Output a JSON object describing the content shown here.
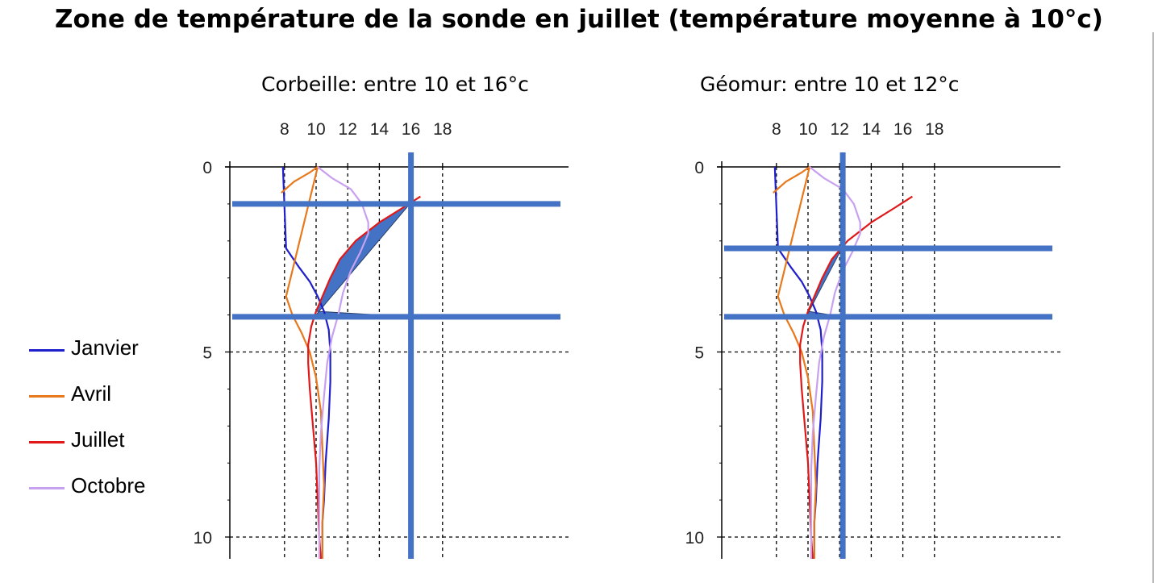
{
  "title": "Zone de température de la sonde en juillet (température moyenne à 10°c)",
  "legend": [
    {
      "label": "Janvier",
      "color": "#1f1fcc"
    },
    {
      "label": "Avril",
      "color": "#e8781c"
    },
    {
      "label": "Juillet",
      "color": "#e01818"
    },
    {
      "label": "Octobre",
      "color": "#c8a0f0"
    }
  ],
  "colors": {
    "zone": "#4472c4",
    "grid": "#000000"
  },
  "chart_data": [
    {
      "type": "line",
      "title": "Corbeille: entre 10 et 16°c",
      "x_ticks": [
        8,
        10,
        12,
        14,
        16,
        18
      ],
      "y_ticks": [
        0,
        5,
        10
      ],
      "xlim": [
        7.8,
        16.6
      ],
      "ylim": [
        0,
        10.6
      ],
      "y_inverted": true,
      "grid": "dashed",
      "highlight": {
        "temp_line": 16.0,
        "depth_top": 1.0,
        "depth_bottom": 4.05
      },
      "series": [
        {
          "name": "Janvier",
          "points": [
            [
              7.9,
              0
            ],
            [
              8.1,
              2.2
            ],
            [
              8.9,
              2.7
            ],
            [
              9.6,
              3.1
            ],
            [
              10.1,
              3.5
            ],
            [
              10.5,
              3.9
            ],
            [
              10.8,
              4.4
            ],
            [
              10.9,
              5.0
            ],
            [
              10.9,
              5.8
            ],
            [
              10.8,
              6.8
            ],
            [
              10.6,
              8.0
            ],
            [
              10.5,
              9.0
            ],
            [
              10.4,
              9.6
            ],
            [
              10.4,
              10.6
            ]
          ]
        },
        {
          "name": "Avril",
          "points": [
            [
              7.8,
              0.7
            ],
            [
              8.6,
              0.4
            ],
            [
              9.6,
              0.15
            ],
            [
              10.1,
              0
            ],
            [
              8.1,
              3.5
            ],
            [
              8.5,
              4.0
            ],
            [
              9.1,
              4.5
            ],
            [
              9.6,
              5.0
            ],
            [
              10.0,
              5.7
            ],
            [
              10.3,
              6.6
            ],
            [
              10.4,
              7.6
            ],
            [
              10.5,
              8.6
            ],
            [
              10.4,
              9.6
            ],
            [
              10.4,
              10.6
            ]
          ]
        },
        {
          "name": "Juillet",
          "points": [
            [
              16.6,
              0.8
            ],
            [
              15.5,
              1.1
            ],
            [
              14.0,
              1.5
            ],
            [
              12.5,
              2.0
            ],
            [
              11.5,
              2.5
            ],
            [
              10.9,
              3.0
            ],
            [
              10.4,
              3.5
            ],
            [
              10.0,
              3.9
            ],
            [
              9.7,
              4.3
            ],
            [
              9.5,
              4.8
            ],
            [
              9.5,
              5.3
            ],
            [
              9.6,
              6.0
            ],
            [
              9.8,
              7.0
            ],
            [
              10.0,
              8.0
            ],
            [
              10.1,
              9.0
            ],
            [
              10.2,
              10.0
            ],
            [
              10.3,
              10.6
            ]
          ]
        },
        {
          "name": "Octobre",
          "points": [
            [
              10.1,
              0
            ],
            [
              11.0,
              0.3
            ],
            [
              12.2,
              0.6
            ],
            [
              12.9,
              1.0
            ],
            [
              13.3,
              1.5
            ],
            [
              13.3,
              1.8
            ],
            [
              12.8,
              2.3
            ],
            [
              12.2,
              2.8
            ],
            [
              11.7,
              3.4
            ],
            [
              11.4,
              4.0
            ],
            [
              11.0,
              4.6
            ],
            [
              10.7,
              5.3
            ],
            [
              10.5,
              6.2
            ],
            [
              10.3,
              7.2
            ],
            [
              10.2,
              8.2
            ],
            [
              10.2,
              9.2
            ],
            [
              10.2,
              10.6
            ]
          ]
        }
      ]
    },
    {
      "type": "line",
      "title": "Géomur: entre 10 et 12°c",
      "x_ticks": [
        8,
        10,
        12,
        14,
        16,
        18
      ],
      "y_ticks": [
        0,
        5,
        10
      ],
      "xlim": [
        7.8,
        16.6
      ],
      "ylim": [
        0,
        10.6
      ],
      "y_inverted": true,
      "grid": "dashed",
      "highlight": {
        "temp_line": 12.2,
        "depth_top": 2.2,
        "depth_bottom": 4.05
      },
      "series": [
        {
          "name": "Janvier",
          "points": [
            [
              7.9,
              0
            ],
            [
              8.1,
              2.2
            ],
            [
              8.9,
              2.7
            ],
            [
              9.6,
              3.1
            ],
            [
              10.1,
              3.5
            ],
            [
              10.5,
              3.9
            ],
            [
              10.8,
              4.4
            ],
            [
              10.9,
              5.0
            ],
            [
              10.9,
              5.8
            ],
            [
              10.8,
              6.8
            ],
            [
              10.6,
              8.0
            ],
            [
              10.5,
              9.0
            ],
            [
              10.4,
              9.6
            ],
            [
              10.4,
              10.6
            ]
          ]
        },
        {
          "name": "Avril",
          "points": [
            [
              7.8,
              0.7
            ],
            [
              8.6,
              0.4
            ],
            [
              9.6,
              0.15
            ],
            [
              10.1,
              0
            ],
            [
              8.1,
              3.5
            ],
            [
              8.5,
              4.0
            ],
            [
              9.1,
              4.5
            ],
            [
              9.6,
              5.0
            ],
            [
              10.0,
              5.7
            ],
            [
              10.3,
              6.6
            ],
            [
              10.4,
              7.6
            ],
            [
              10.5,
              8.6
            ],
            [
              10.4,
              9.6
            ],
            [
              10.4,
              10.6
            ]
          ]
        },
        {
          "name": "Juillet",
          "points": [
            [
              16.6,
              0.8
            ],
            [
              15.5,
              1.1
            ],
            [
              14.0,
              1.5
            ],
            [
              12.5,
              2.0
            ],
            [
              11.5,
              2.5
            ],
            [
              10.9,
              3.0
            ],
            [
              10.4,
              3.5
            ],
            [
              10.0,
              3.9
            ],
            [
              9.7,
              4.3
            ],
            [
              9.5,
              4.8
            ],
            [
              9.5,
              5.3
            ],
            [
              9.6,
              6.0
            ],
            [
              9.8,
              7.0
            ],
            [
              10.0,
              8.0
            ],
            [
              10.1,
              9.0
            ],
            [
              10.2,
              10.0
            ],
            [
              10.3,
              10.6
            ]
          ]
        },
        {
          "name": "Octobre",
          "points": [
            [
              10.1,
              0
            ],
            [
              11.0,
              0.3
            ],
            [
              12.2,
              0.6
            ],
            [
              12.9,
              1.0
            ],
            [
              13.3,
              1.5
            ],
            [
              13.3,
              1.8
            ],
            [
              12.8,
              2.3
            ],
            [
              12.2,
              2.8
            ],
            [
              11.7,
              3.4
            ],
            [
              11.4,
              4.0
            ],
            [
              11.0,
              4.6
            ],
            [
              10.7,
              5.3
            ],
            [
              10.5,
              6.2
            ],
            [
              10.3,
              7.2
            ],
            [
              10.2,
              8.2
            ],
            [
              10.2,
              9.2
            ],
            [
              10.2,
              10.6
            ]
          ]
        }
      ]
    }
  ]
}
